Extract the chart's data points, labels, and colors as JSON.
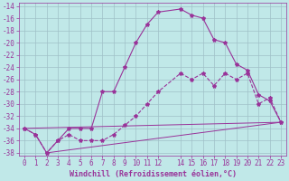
{
  "xlabel": "Windchill (Refroidissement éolien,°C)",
  "background_color": "#c0e8e8",
  "grid_color": "#a0c0c8",
  "line_color": "#993399",
  "xlim": [
    -0.5,
    23.5
  ],
  "ylim": [
    -38.5,
    -13.5
  ],
  "xticks": [
    0,
    1,
    2,
    3,
    4,
    5,
    6,
    7,
    8,
    9,
    10,
    11,
    12,
    14,
    15,
    16,
    17,
    18,
    19,
    20,
    21,
    22,
    23
  ],
  "yticks": [
    -38,
    -36,
    -34,
    -32,
    -30,
    -28,
    -26,
    -24,
    -22,
    -20,
    -18,
    -16,
    -14
  ],
  "curve_upper_x": [
    0,
    1,
    2,
    3,
    4,
    5,
    6,
    7,
    8,
    9,
    10,
    11,
    12,
    14,
    15,
    16,
    17,
    18,
    19,
    20,
    21,
    22,
    23
  ],
  "curve_upper_y": [
    -34,
    -35,
    -38,
    -36,
    -34,
    -34,
    -34,
    -28,
    -28,
    -24,
    -20,
    -17,
    -15,
    -14.5,
    -15.5,
    -16,
    -19.5,
    -20,
    -23.5,
    -24.5,
    -28.5,
    -29.5,
    -33
  ],
  "curve_lower_x": [
    0,
    1,
    2,
    3,
    4,
    5,
    6,
    7,
    8,
    9,
    10,
    11,
    12,
    14,
    15,
    16,
    17,
    18,
    19,
    20,
    21,
    22,
    23
  ],
  "curve_lower_y": [
    -34,
    -35,
    -38,
    -36,
    -35,
    -36,
    -36,
    -36,
    -35,
    -33.5,
    -32,
    -30,
    -28,
    -25,
    -26,
    -25,
    -27,
    -25,
    -26,
    -25,
    -30,
    -29,
    -33
  ],
  "line1_x": [
    2,
    23
  ],
  "line1_y": [
    -38,
    -33
  ],
  "line2_x": [
    0,
    23
  ],
  "line2_y": [
    -34,
    -33
  ],
  "fontsize_axis": 6,
  "fontsize_tick": 5.5
}
